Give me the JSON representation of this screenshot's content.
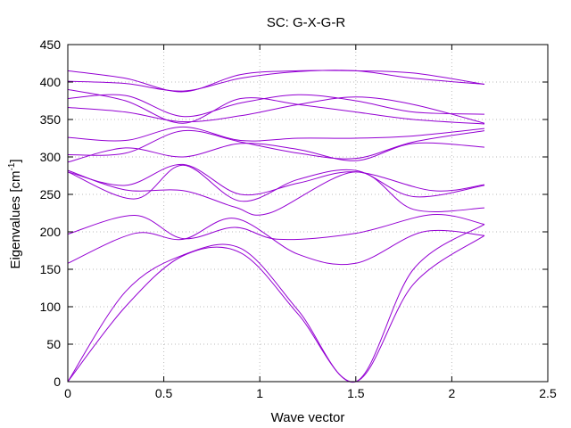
{
  "chart_data": {
    "type": "line",
    "title": "SC: G-X-G-R",
    "xlabel": "Wave vector",
    "ylabel": "Eigenvalues [cm",
    "ylabel_sup": "-1",
    "ylabel_end": "]",
    "xlim": [
      0,
      2.5
    ],
    "ylim": [
      0,
      450
    ],
    "xticks": [
      "0",
      "0.5",
      "1",
      "1.5",
      "2",
      "2.5"
    ],
    "yticks": [
      "0",
      "50",
      "100",
      "150",
      "200",
      "250",
      "300",
      "350",
      "400",
      "450"
    ],
    "grid": true,
    "line_color": "#9400d3",
    "series": [
      {
        "x": [
          0,
          0.3,
          0.6,
          0.9,
          1.2,
          1.5,
          1.8,
          2.17
        ],
        "y": [
          0,
          100,
          168,
          172,
          90,
          0,
          130,
          195
        ]
      },
      {
        "x": [
          0,
          0.3,
          0.6,
          0.9,
          1.2,
          1.5,
          1.8,
          2.17
        ],
        "y": [
          0,
          120,
          169,
          178,
          95,
          0,
          150,
          210
        ]
      },
      {
        "x": [
          0,
          0.35,
          0.6,
          0.87,
          1.2,
          1.5,
          1.85,
          2.17
        ],
        "y": [
          158,
          198,
          190,
          218,
          170,
          158,
          200,
          195
        ]
      },
      {
        "x": [
          0,
          0.35,
          0.6,
          0.87,
          1.1,
          1.5,
          1.9,
          2.17
        ],
        "y": [
          197,
          222,
          191,
          206,
          190,
          198,
          223,
          210
        ]
      },
      {
        "x": [
          0,
          0.3,
          0.6,
          0.87,
          1.05,
          1.5,
          1.8,
          2.17
        ],
        "y": [
          282,
          256,
          255,
          233,
          225,
          280,
          230,
          232
        ]
      },
      {
        "x": [
          0,
          0.35,
          0.6,
          0.9,
          1.2,
          1.5,
          1.8,
          2.17
        ],
        "y": [
          280,
          244,
          289,
          241,
          270,
          282,
          247,
          262
        ]
      },
      {
        "x": [
          0,
          0.3,
          0.6,
          0.9,
          1.2,
          1.5,
          1.9,
          2.17
        ],
        "y": [
          280,
          262,
          290,
          250,
          265,
          280,
          255,
          263
        ]
      },
      {
        "x": [
          0,
          0.3,
          0.6,
          0.9,
          1.2,
          1.5,
          1.8,
          2.17
        ],
        "y": [
          293,
          312,
          300,
          318,
          310,
          295,
          318,
          313
        ]
      },
      {
        "x": [
          0,
          0.3,
          0.6,
          0.9,
          1.2,
          1.5,
          1.8,
          2.17
        ],
        "y": [
          303,
          305,
          335,
          320,
          305,
          298,
          320,
          335
        ]
      },
      {
        "x": [
          0,
          0.3,
          0.6,
          0.9,
          1.2,
          1.5,
          1.8,
          2.17
        ],
        "y": [
          326,
          322,
          340,
          322,
          325,
          325,
          328,
          338
        ]
      },
      {
        "x": [
          0,
          0.3,
          0.6,
          0.9,
          1.2,
          1.5,
          1.8,
          2.17
        ],
        "y": [
          366,
          360,
          347,
          355,
          370,
          380,
          370,
          345
        ]
      },
      {
        "x": [
          0,
          0.3,
          0.6,
          0.9,
          1.2,
          1.5,
          1.8,
          2.17
        ],
        "y": [
          378,
          382,
          354,
          372,
          383,
          375,
          360,
          357
        ]
      },
      {
        "x": [
          0,
          0.3,
          0.6,
          0.9,
          1.2,
          1.5,
          1.8,
          2.17
        ],
        "y": [
          390,
          375,
          345,
          378,
          370,
          360,
          350,
          344
        ]
      },
      {
        "x": [
          0,
          0.3,
          0.6,
          0.9,
          1.2,
          1.5,
          1.8,
          2.17
        ],
        "y": [
          401,
          398,
          388,
          405,
          414,
          415,
          405,
          397
        ]
      },
      {
        "x": [
          0,
          0.3,
          0.6,
          0.9,
          1.2,
          1.5,
          1.8,
          2.17
        ],
        "y": [
          415,
          405,
          387,
          410,
          415,
          415,
          412,
          397
        ]
      }
    ]
  }
}
